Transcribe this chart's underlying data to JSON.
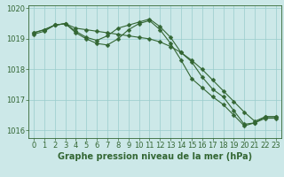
{
  "title": "Graphe pression niveau de la mer (hPa)",
  "xlabel_hours": [
    0,
    1,
    2,
    3,
    4,
    5,
    6,
    7,
    8,
    9,
    10,
    11,
    12,
    13,
    14,
    15,
    16,
    17,
    18,
    19,
    20,
    21,
    22,
    23
  ],
  "line1": [
    1019.2,
    1019.3,
    1019.45,
    1019.5,
    1019.25,
    1019.05,
    1018.95,
    1019.1,
    1019.35,
    1019.45,
    1019.55,
    1019.65,
    1019.4,
    1019.05,
    1018.55,
    1018.25,
    1017.75,
    1017.35,
    1017.1,
    1016.65,
    1016.2,
    1016.25,
    1016.45,
    1016.45
  ],
  "line2": [
    1019.15,
    1019.25,
    1019.45,
    1019.5,
    1019.2,
    1019.0,
    1018.85,
    1018.8,
    1019.0,
    1019.3,
    1019.5,
    1019.6,
    1019.3,
    1018.85,
    1018.3,
    1017.7,
    1017.4,
    1017.1,
    1016.85,
    1016.5,
    1016.15,
    1016.25,
    1016.4,
    1016.4
  ],
  "line3": [
    1019.2,
    1019.3,
    1019.45,
    1019.5,
    1019.35,
    1019.3,
    1019.25,
    1019.2,
    1019.15,
    1019.1,
    1019.05,
    1019.0,
    1018.9,
    1018.75,
    1018.55,
    1018.3,
    1018.0,
    1017.65,
    1017.3,
    1016.95,
    1016.6,
    1016.3,
    1016.45,
    1016.45
  ],
  "bg_color": "#cce8e8",
  "line_color": "#336633",
  "grid_color": "#99cccc",
  "ylim": [
    1015.75,
    1020.1
  ],
  "yticks": [
    1016,
    1017,
    1018,
    1019,
    1020
  ],
  "label_color": "#336633",
  "title_color": "#336633",
  "title_fontsize": 7.0,
  "tick_fontsize": 6.0,
  "marker": "D",
  "markersize": 2.5,
  "linewidth": 0.8
}
